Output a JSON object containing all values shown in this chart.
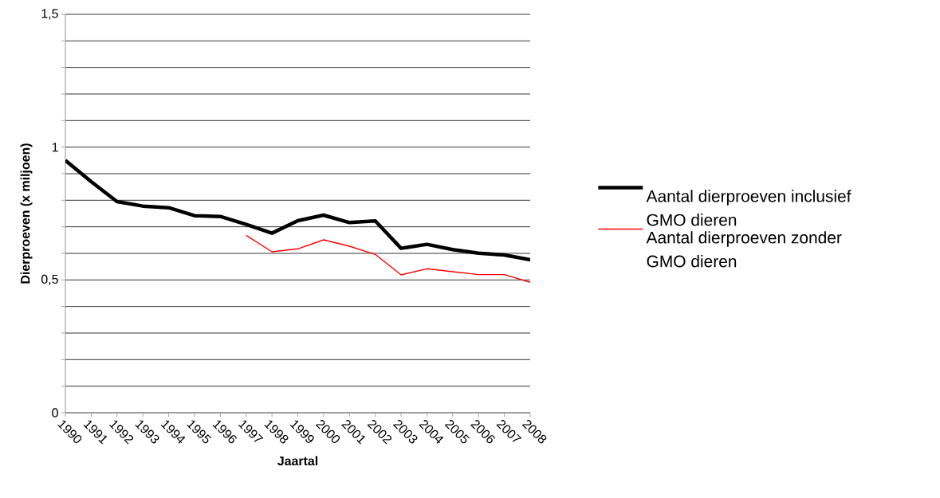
{
  "chart_data": {
    "type": "line",
    "xlabel": "Jaartal",
    "ylabel": "Dierproeven (x miljoen)",
    "categories": [
      "1990",
      "1991",
      "1992",
      "1993",
      "1994",
      "1995",
      "1996",
      "1997",
      "1998",
      "1999",
      "2000",
      "2001",
      "2002",
      "2003",
      "2004",
      "2005",
      "2006",
      "2007",
      "2008"
    ],
    "series": [
      {
        "name": "Aantal dierproeven inclusief GMO dieren",
        "color": "#000000",
        "values": [
          0.95,
          0.87,
          0.795,
          0.778,
          0.772,
          0.742,
          0.739,
          0.709,
          0.676,
          0.723,
          0.744,
          0.716,
          0.722,
          0.619,
          0.634,
          0.614,
          0.601,
          0.594,
          0.576
        ]
      },
      {
        "name": "Aantal dierproeven zonder GMO dieren",
        "color": "#ff0000",
        "values": [
          null,
          null,
          null,
          null,
          null,
          null,
          null,
          0.668,
          0.606,
          0.617,
          0.651,
          0.627,
          0.596,
          0.519,
          0.542,
          0.531,
          0.52,
          0.52,
          0.491
        ]
      }
    ],
    "ylim": [
      0,
      1.5
    ],
    "yticks": [
      0,
      {
        "value": 0.1,
        "label": null
      },
      {
        "value": 0.2,
        "label": null
      },
      {
        "value": 0.3,
        "label": null
      },
      {
        "value": 0.4,
        "label": null
      },
      {
        "value": 0.5,
        "label": "0,5"
      },
      {
        "value": 0.6,
        "label": null
      },
      {
        "value": 0.7,
        "label": null
      },
      {
        "value": 0.8,
        "label": null
      },
      {
        "value": 0.9,
        "label": null
      },
      1,
      {
        "value": 1.1,
        "label": null
      },
      {
        "value": 1.2,
        "label": null
      },
      {
        "value": 1.3,
        "label": null
      },
      {
        "value": 1.4,
        "label": null
      },
      {
        "value": 1.5,
        "label": "1,5"
      }
    ],
    "grid": "y",
    "legend": "right",
    "marker": "none",
    "line_style": "solid"
  }
}
